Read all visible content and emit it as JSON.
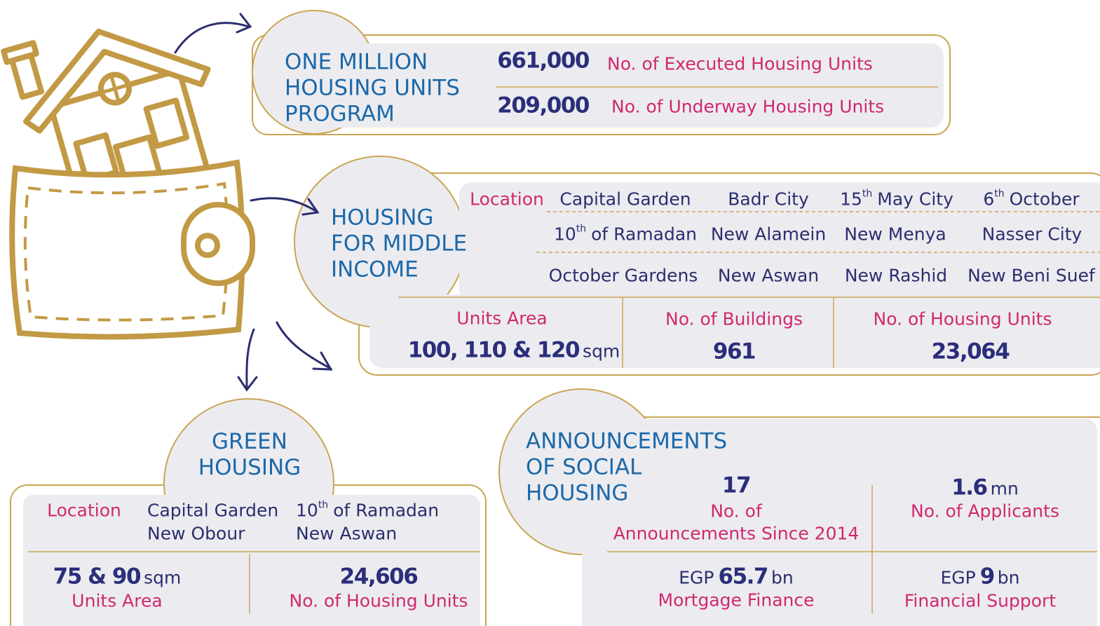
{
  "one_million_program": {
    "title": [
      "ONE MILLION",
      "HOUSING UNITS",
      "PROGRAM"
    ],
    "stats": [
      {
        "value": "661,000",
        "label": "No. of Executed Housing Units"
      },
      {
        "value": "209,000",
        "label": "No. of Underway Housing Units"
      }
    ]
  },
  "middle_income_housing": {
    "title": [
      "HOUSING",
      "FOR MIDDLE",
      "INCOME"
    ],
    "location_label": "Location",
    "locations": [
      [
        "Capital Garden",
        "Badr City",
        {
          "number": "15",
          "suffix": "th",
          "name": "May City"
        },
        {
          "number": "6",
          "suffix": "th",
          "name": "October"
        }
      ],
      [
        {
          "number": "10",
          "suffix": "th",
          "name": "of Ramadan"
        },
        "New Alamein",
        "New Menya",
        "Nasser City"
      ],
      [
        "October Gardens",
        "New Aswan",
        "New Rashid",
        "New Beni Suef"
      ]
    ],
    "units_area": {
      "label": "Units Area",
      "value": "100, 110 & 120",
      "unit": "sqm"
    },
    "buildings": {
      "label": "No. of Buildings",
      "value": "961"
    },
    "housing_units": {
      "label": "No. of Housing Units",
      "value": "23,064"
    }
  },
  "green_housing": {
    "title": [
      "GREEN",
      "HOUSING"
    ],
    "location_label": "Location",
    "locations": [
      [
        "Capital Garden",
        "New Obour"
      ],
      [
        {
          "number": "10",
          "suffix": "th",
          "name": "of Ramadan"
        },
        "New Aswan"
      ]
    ],
    "units_area": {
      "value": "75 & 90",
      "unit": "sqm",
      "label": "Units Area"
    },
    "housing_units": {
      "value": "24,606",
      "label": "No. of Housing Units"
    }
  },
  "social_housing_announcements": {
    "title": [
      "ANNOUNCEMENTS",
      "OF SOCIAL",
      "HOUSING"
    ],
    "announcements": {
      "value": "17",
      "label": [
        "No. of",
        "Announcements Since 2014"
      ]
    },
    "applicants": {
      "value": "1.6",
      "unit": "mn",
      "label": "No. of Applicants"
    },
    "mortgage_finance": {
      "currency": "EGP",
      "value": "65.7",
      "unit": "bn",
      "label": "Mortgage Finance"
    },
    "financial_support": {
      "currency": "EGP",
      "value": "9",
      "unit": "bn",
      "label": "Financial Support"
    }
  }
}
